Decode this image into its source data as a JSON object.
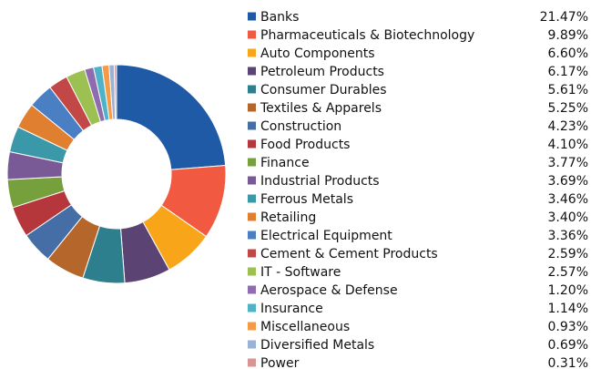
{
  "chart_data": {
    "type": "pie",
    "donut": true,
    "legend_position": "right",
    "categories": [
      "Banks",
      "Pharmaceuticals & Biotechnology",
      "Auto Components",
      "Petroleum Products",
      "Consumer Durables",
      "Textiles & Apparels",
      "Construction",
      "Food Products",
      "Finance",
      "Industrial Products",
      "Ferrous Metals",
      "Retailing",
      "Electrical Equipment",
      "Cement & Cement Products",
      "IT - Software",
      "Aerospace & Defense",
      "Insurance",
      "Miscellaneous",
      "Diversified Metals",
      "Power"
    ],
    "values": [
      21.47,
      9.89,
      6.6,
      6.17,
      5.61,
      5.25,
      4.23,
      4.1,
      3.77,
      3.69,
      3.46,
      3.4,
      3.36,
      2.59,
      2.57,
      1.2,
      1.14,
      0.93,
      0.69,
      0.31
    ],
    "value_labels": [
      "21.47%",
      "9.89%",
      "6.60%",
      "6.17%",
      "5.61%",
      "5.25%",
      "4.23%",
      "4.10%",
      "3.77%",
      "3.69%",
      "3.46%",
      "3.40%",
      "3.36%",
      "2.59%",
      "2.57%",
      "1.20%",
      "1.14%",
      "0.93%",
      "0.69%",
      "0.31%"
    ],
    "colors": [
      "#1f5aa6",
      "#f15a40",
      "#f9a51a",
      "#5b4473",
      "#2e7f8e",
      "#b5672b",
      "#456ea6",
      "#b6373b",
      "#76a03c",
      "#7a5a96",
      "#3a98a8",
      "#e07f30",
      "#4a7fc4",
      "#c24848",
      "#9cc152",
      "#8f6bb0",
      "#4fb3c8",
      "#f59a45",
      "#99b2d6",
      "#d99494"
    ]
  }
}
